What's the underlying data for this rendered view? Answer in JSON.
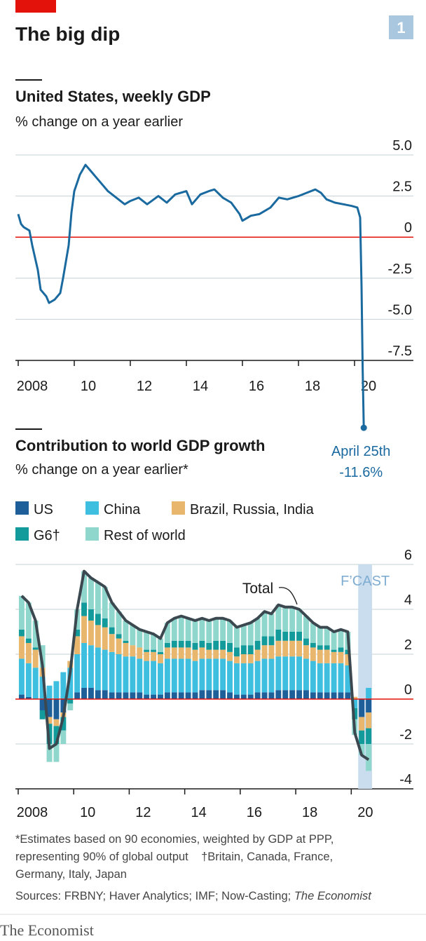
{
  "header": {
    "title": "The big dip",
    "badge": "1"
  },
  "chart_data": [
    {
      "type": "line",
      "title": "United States, weekly GDP",
      "subtitle": "% change on a year earlier",
      "color": "#1a6aa0",
      "zero_line_color": "#e3120b",
      "grid": true,
      "xlim": [
        2007.9,
        2020.6
      ],
      "ylim": [
        -7.5,
        5
      ],
      "xticks": [
        2008,
        {
          "value": 2010,
          "label": "10"
        },
        {
          "value": 2012,
          "label": "12"
        },
        {
          "value": 2014,
          "label": "14"
        },
        {
          "value": 2016,
          "label": "16"
        },
        {
          "value": 2018,
          "label": "18"
        },
        {
          "value": 2020,
          "label": "20"
        }
      ],
      "yticks": [
        -7.5,
        {
          "value": -5,
          "label": "-5.0"
        },
        -2.5,
        0,
        2.5,
        {
          "value": 5,
          "label": "5.0"
        }
      ],
      "x": [
        2008.0,
        2008.1,
        2008.2,
        2008.4,
        2008.5,
        2008.7,
        2008.8,
        2009.0,
        2009.1,
        2009.3,
        2009.5,
        2009.6,
        2009.8,
        2009.9,
        2010.0,
        2010.2,
        2010.4,
        2010.6,
        2010.8,
        2011.0,
        2011.2,
        2011.5,
        2011.8,
        2012.0,
        2012.3,
        2012.6,
        2013.0,
        2013.3,
        2013.6,
        2014.0,
        2014.2,
        2014.5,
        2014.8,
        2015.0,
        2015.3,
        2015.6,
        2015.9,
        2016.0,
        2016.3,
        2016.6,
        2017.0,
        2017.3,
        2017.6,
        2018.0,
        2018.3,
        2018.6,
        2018.8,
        2019.0,
        2019.3,
        2019.6,
        2019.9,
        2020.1,
        2020.2,
        2020.25,
        2020.29,
        2020.33
      ],
      "values": [
        1.4,
        0.8,
        0.6,
        0.4,
        -0.5,
        -2.0,
        -3.2,
        -3.6,
        -4.0,
        -3.8,
        -3.4,
        -2.5,
        -0.5,
        1.5,
        2.8,
        3.8,
        4.4,
        4.0,
        3.6,
        3.2,
        2.8,
        2.4,
        2.0,
        2.2,
        2.4,
        2.0,
        2.5,
        2.1,
        2.6,
        2.8,
        2.0,
        2.6,
        2.8,
        2.9,
        2.4,
        2.1,
        1.4,
        1.0,
        1.3,
        1.4,
        1.8,
        2.4,
        2.3,
        2.5,
        2.7,
        2.9,
        2.7,
        2.3,
        2.1,
        2.0,
        1.9,
        1.8,
        1.2,
        -3.0,
        -8.0,
        -11.6
      ],
      "value_labels": [
        null,
        null,
        null,
        null,
        null,
        null,
        null,
        null,
        null,
        null,
        null,
        null,
        null,
        null,
        null,
        null,
        null,
        null,
        null,
        null,
        null,
        null,
        null,
        null,
        null,
        null,
        null,
        null,
        null,
        null,
        null,
        null,
        null,
        null,
        null,
        null,
        null,
        null,
        null,
        null,
        null,
        null,
        null,
        null,
        null,
        null,
        null,
        null,
        null,
        null,
        null,
        null,
        null,
        null,
        null,
        "-11.6%"
      ],
      "annotation": "April 25th"
    },
    {
      "type": "stacked_bar",
      "title": "Contribution to world GDP growth",
      "subtitle": "% change on a year earlier*",
      "zero_line_color": "#e3120b",
      "grid": true,
      "xlim": [
        2007.9,
        2020.85
      ],
      "ylim": [
        -4,
        6
      ],
      "xticks": [
        2008,
        {
          "value": 2010,
          "label": "10"
        },
        {
          "value": 2012,
          "label": "12"
        },
        {
          "value": 2014,
          "label": "14"
        },
        {
          "value": 2016,
          "label": "16"
        },
        {
          "value": 2018,
          "label": "18"
        },
        {
          "value": 2020,
          "label": "20"
        }
      ],
      "yticks": [
        -4,
        -2,
        0,
        2,
        4,
        6
      ],
      "forecast": {
        "label": "F’CAST",
        "x": [
          2020.25,
          2020.75
        ],
        "color": "#c9ddee"
      },
      "x": [
        2008.125,
        2008.375,
        2008.625,
        2008.875,
        2009.125,
        2009.375,
        2009.625,
        2009.875,
        2010.125,
        2010.375,
        2010.625,
        2010.875,
        2011.125,
        2011.375,
        2011.625,
        2011.875,
        2012.125,
        2012.375,
        2012.625,
        2012.875,
        2013.125,
        2013.375,
        2013.625,
        2013.875,
        2014.125,
        2014.375,
        2014.625,
        2014.875,
        2015.125,
        2015.375,
        2015.625,
        2015.875,
        2016.125,
        2016.375,
        2016.625,
        2016.875,
        2017.125,
        2017.375,
        2017.625,
        2017.875,
        2018.125,
        2018.375,
        2018.625,
        2018.875,
        2019.125,
        2019.375,
        2019.625,
        2019.875,
        2020.125,
        2020.375,
        2020.625
      ],
      "series": [
        {
          "name": "US",
          "color": "#1f5f99",
          "values": [
            0.2,
            0.1,
            0.0,
            -0.5,
            -0.8,
            -0.9,
            -0.6,
            0.0,
            0.3,
            0.5,
            0.5,
            0.4,
            0.4,
            0.3,
            0.3,
            0.3,
            0.3,
            0.3,
            0.2,
            0.2,
            0.2,
            0.3,
            0.3,
            0.3,
            0.3,
            0.3,
            0.4,
            0.4,
            0.4,
            0.4,
            0.3,
            0.2,
            0.2,
            0.2,
            0.3,
            0.3,
            0.3,
            0.4,
            0.4,
            0.4,
            0.4,
            0.4,
            0.3,
            0.3,
            0.3,
            0.3,
            0.3,
            0.3,
            0.0,
            -0.8,
            -0.6
          ]
        },
        {
          "name": "China",
          "color": "#3fbfe0",
          "values": [
            1.6,
            1.5,
            1.4,
            1.0,
            0.6,
            0.8,
            1.2,
            1.4,
            1.7,
            2.0,
            1.9,
            1.9,
            1.8,
            1.8,
            1.7,
            1.6,
            1.6,
            1.5,
            1.5,
            1.5,
            1.4,
            1.5,
            1.5,
            1.5,
            1.5,
            1.4,
            1.4,
            1.4,
            1.4,
            1.4,
            1.4,
            1.4,
            1.4,
            1.4,
            1.4,
            1.5,
            1.5,
            1.5,
            1.5,
            1.5,
            1.5,
            1.4,
            1.4,
            1.3,
            1.3,
            1.3,
            1.3,
            1.2,
            -0.4,
            0.0,
            0.5
          ]
        },
        {
          "name": "Brazil, Russia, India",
          "color": "#e8b66c",
          "values": [
            1.0,
            0.9,
            0.8,
            0.4,
            -0.3,
            -0.3,
            -0.2,
            0.3,
            0.8,
            1.2,
            1.1,
            1.0,
            1.0,
            0.8,
            0.7,
            0.6,
            0.5,
            0.5,
            0.4,
            0.4,
            0.4,
            0.5,
            0.5,
            0.5,
            0.5,
            0.5,
            0.5,
            0.4,
            0.4,
            0.4,
            0.4,
            0.3,
            0.4,
            0.4,
            0.5,
            0.6,
            0.6,
            0.7,
            0.7,
            0.7,
            0.7,
            0.6,
            0.6,
            0.6,
            0.6,
            0.5,
            0.5,
            0.5,
            0.1,
            -0.6,
            -0.7
          ]
        },
        {
          "name": "G6†",
          "color": "#139a9a",
          "values": [
            0.3,
            0.2,
            0.1,
            -0.4,
            -0.9,
            -0.8,
            -0.6,
            -0.2,
            0.3,
            0.6,
            0.5,
            0.5,
            0.4,
            0.3,
            0.2,
            0.1,
            0.0,
            0.0,
            0.1,
            0.1,
            0.1,
            0.2,
            0.3,
            0.3,
            0.3,
            0.3,
            0.3,
            0.3,
            0.4,
            0.4,
            0.4,
            0.4,
            0.4,
            0.4,
            0.4,
            0.4,
            0.4,
            0.5,
            0.4,
            0.4,
            0.4,
            0.3,
            0.2,
            0.2,
            0.2,
            0.1,
            0.2,
            0.2,
            -0.5,
            -0.6,
            -0.7
          ]
        },
        {
          "name": "Rest of world",
          "color": "#8fd6cd",
          "values": [
            1.5,
            1.6,
            1.2,
            1.0,
            -0.8,
            -0.8,
            -0.6,
            -0.3,
            0.9,
            1.4,
            1.4,
            1.4,
            1.4,
            1.1,
            1.0,
            0.9,
            0.9,
            0.8,
            0.8,
            0.7,
            0.6,
            0.9,
            1.0,
            1.1,
            1.0,
            1.0,
            1.0,
            1.0,
            1.0,
            1.0,
            1.0,
            0.9,
            0.9,
            1.0,
            1.0,
            1.1,
            1.0,
            1.1,
            1.1,
            1.1,
            1.0,
            1.0,
            0.9,
            0.8,
            0.8,
            0.8,
            0.8,
            0.8,
            -0.7,
            -0.5,
            -1.2
          ]
        }
      ],
      "line_series": {
        "name": "Total",
        "color": "#3b4850",
        "values": [
          4.6,
          4.3,
          3.5,
          1.5,
          -2.2,
          -2.0,
          -0.8,
          1.2,
          4.0,
          5.7,
          5.4,
          5.2,
          5.0,
          4.3,
          3.9,
          3.5,
          3.3,
          3.1,
          3.0,
          2.9,
          2.7,
          3.4,
          3.6,
          3.7,
          3.6,
          3.5,
          3.6,
          3.5,
          3.6,
          3.6,
          3.5,
          3.2,
          3.3,
          3.4,
          3.6,
          3.9,
          3.8,
          4.2,
          4.1,
          4.1,
          4.0,
          3.7,
          3.4,
          3.2,
          3.2,
          3.0,
          3.1,
          3.0,
          -1.5,
          -2.5,
          -2.7
        ]
      }
    }
  ],
  "footnote": [
    "*Estimates based on 90 economies, weighted by GDP at PPP,",
    "representing 90% of global output    †Britain, Canada, France,",
    "Germany, Italy, Japan"
  ],
  "sources": "Sources: FRBNY; Haver Analytics; IMF; Now-Casting;",
  "sources_italic": "The Economist",
  "brand": "The Economist"
}
